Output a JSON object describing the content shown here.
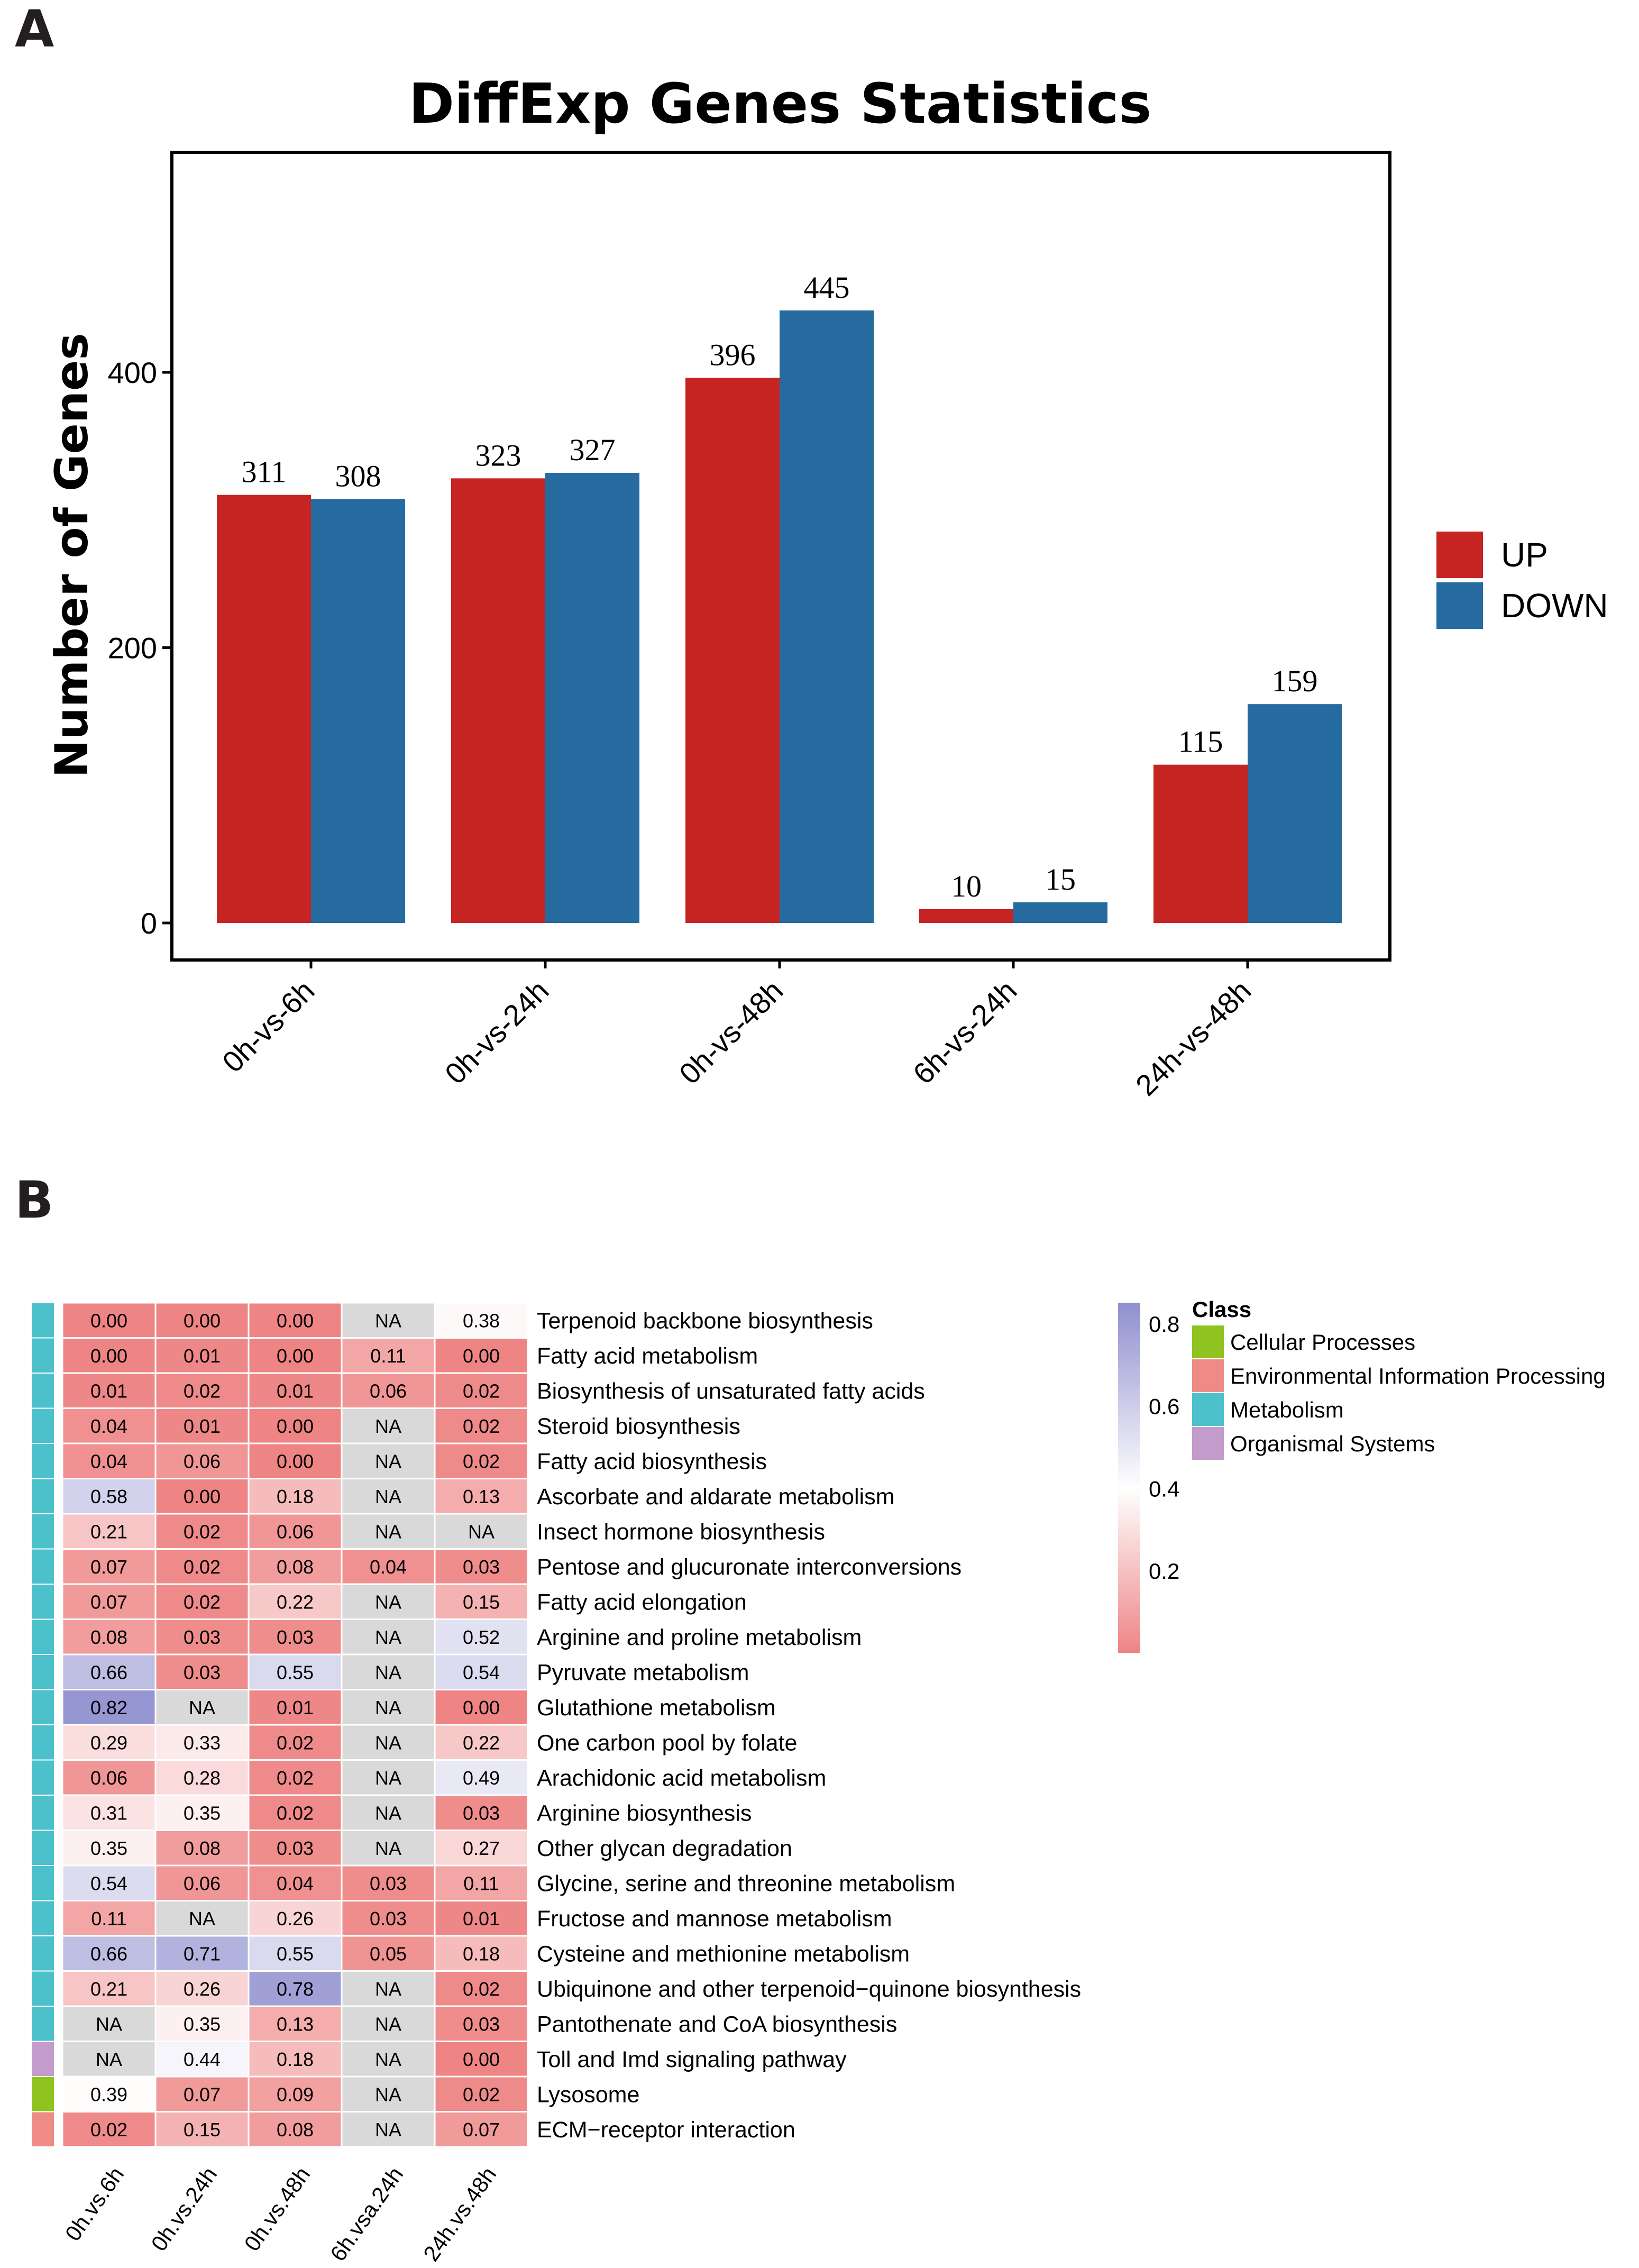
{
  "panels": {
    "a_letter": "A",
    "b_letter": "B"
  },
  "chart_data": [
    {
      "type": "bar",
      "title": "DiffExp Genes Statistics",
      "xlabel": "",
      "ylabel": "Number of Genes",
      "categories": [
        "0h-vs-6h",
        "0h-vs-24h",
        "0h-vs-48h",
        "6h-vs-24h",
        "24h-vs-48h"
      ],
      "series": [
        {
          "name": "UP",
          "color": "#c52423",
          "values": [
            311,
            323,
            396,
            10,
            115
          ]
        },
        {
          "name": "DOWN",
          "color": "#256b9f",
          "values": [
            308,
            327,
            445,
            15,
            159
          ]
        }
      ],
      "yticks": [
        0,
        200,
        400
      ],
      "ylim": [
        0,
        550
      ],
      "grid": false,
      "legend": "right"
    },
    {
      "type": "heatmap",
      "columns": [
        "0h.vs.6h",
        "0h.vs.24h",
        "0h.vs.48h",
        "6h.vsa.24h",
        "24h.vs.48h"
      ],
      "rows": [
        {
          "name": "Terpenoid backbone biosynthesis",
          "class": "Metabolism",
          "values": [
            "0.00",
            "0.00",
            "0.00",
            "NA",
            "0.38"
          ]
        },
        {
          "name": "Fatty acid metabolism",
          "class": "Metabolism",
          "values": [
            "0.00",
            "0.01",
            "0.00",
            "0.11",
            "0.00"
          ]
        },
        {
          "name": "Biosynthesis of unsaturated fatty acids",
          "class": "Metabolism",
          "values": [
            "0.01",
            "0.02",
            "0.01",
            "0.06",
            "0.02"
          ]
        },
        {
          "name": "Steroid biosynthesis",
          "class": "Metabolism",
          "values": [
            "0.04",
            "0.01",
            "0.00",
            "NA",
            "0.02"
          ]
        },
        {
          "name": "Fatty acid biosynthesis",
          "class": "Metabolism",
          "values": [
            "0.04",
            "0.06",
            "0.00",
            "NA",
            "0.02"
          ]
        },
        {
          "name": "Ascorbate and aldarate metabolism",
          "class": "Metabolism",
          "values": [
            "0.58",
            "0.00",
            "0.18",
            "NA",
            "0.13"
          ]
        },
        {
          "name": "Insect hormone biosynthesis",
          "class": "Metabolism",
          "values": [
            "0.21",
            "0.02",
            "0.06",
            "NA",
            "NA"
          ]
        },
        {
          "name": "Pentose and glucuronate interconversions",
          "class": "Metabolism",
          "values": [
            "0.07",
            "0.02",
            "0.08",
            "0.04",
            "0.03"
          ]
        },
        {
          "name": "Fatty acid elongation",
          "class": "Metabolism",
          "values": [
            "0.07",
            "0.02",
            "0.22",
            "NA",
            "0.15"
          ]
        },
        {
          "name": "Arginine and proline metabolism",
          "class": "Metabolism",
          "values": [
            "0.08",
            "0.03",
            "0.03",
            "NA",
            "0.52"
          ]
        },
        {
          "name": "Pyruvate metabolism",
          "class": "Metabolism",
          "values": [
            "0.66",
            "0.03",
            "0.55",
            "NA",
            "0.54"
          ]
        },
        {
          "name": "Glutathione metabolism",
          "class": "Metabolism",
          "values": [
            "0.82",
            "NA",
            "0.01",
            "NA",
            "0.00"
          ]
        },
        {
          "name": "One carbon pool by folate",
          "class": "Metabolism",
          "values": [
            "0.29",
            "0.33",
            "0.02",
            "NA",
            "0.22"
          ]
        },
        {
          "name": "Arachidonic acid metabolism",
          "class": "Metabolism",
          "values": [
            "0.06",
            "0.28",
            "0.02",
            "NA",
            "0.49"
          ]
        },
        {
          "name": "Arginine biosynthesis",
          "class": "Metabolism",
          "values": [
            "0.31",
            "0.35",
            "0.02",
            "NA",
            "0.03"
          ]
        },
        {
          "name": "Other glycan degradation",
          "class": "Metabolism",
          "values": [
            "0.35",
            "0.08",
            "0.03",
            "NA",
            "0.27"
          ]
        },
        {
          "name": "Glycine, serine and threonine metabolism",
          "class": "Metabolism",
          "values": [
            "0.54",
            "0.06",
            "0.04",
            "0.03",
            "0.11"
          ]
        },
        {
          "name": "Fructose and mannose metabolism",
          "class": "Metabolism",
          "values": [
            "0.11",
            "NA",
            "0.26",
            "0.03",
            "0.01"
          ]
        },
        {
          "name": "Cysteine and methionine metabolism",
          "class": "Metabolism",
          "values": [
            "0.66",
            "0.71",
            "0.55",
            "0.05",
            "0.18"
          ]
        },
        {
          "name": "Ubiquinone and other terpenoid−quinone biosynthesis",
          "class": "Metabolism",
          "values": [
            "0.21",
            "0.26",
            "0.78",
            "NA",
            "0.02"
          ]
        },
        {
          "name": "Pantothenate and CoA biosynthesis",
          "class": "Metabolism",
          "values": [
            "NA",
            "0.35",
            "0.13",
            "NA",
            "0.03"
          ]
        },
        {
          "name": "Toll and Imd signaling pathway",
          "class": "Organismal Systems",
          "values": [
            "NA",
            "0.44",
            "0.18",
            "NA",
            "0.00"
          ]
        },
        {
          "name": "Lysosome",
          "class": "Cellular Processes",
          "values": [
            "0.39",
            "0.07",
            "0.09",
            "NA",
            "0.02"
          ]
        },
        {
          "name": "ECM−receptor interaction",
          "class": "Environmental Information Processing",
          "values": [
            "0.02",
            "0.15",
            "0.08",
            "NA",
            "0.07"
          ]
        }
      ],
      "colorbar": {
        "ticks": [
          "0.8",
          "0.6",
          "0.4",
          "0.2"
        ],
        "range": [
          0.0,
          0.85
        ],
        "low_color": "#ee8484",
        "mid_color": "#ffffff",
        "high_color": "#8f8fcf",
        "na_color": "#d9d9d9"
      },
      "class_legend": {
        "title": "Class",
        "items": [
          {
            "name": "Cellular Processes",
            "color": "#8fc31f"
          },
          {
            "name": "Environmental Information Processing",
            "color": "#ef8b87"
          },
          {
            "name": "Metabolism",
            "color": "#4cc1cc"
          },
          {
            "name": "Organismal Systems",
            "color": "#c39ccb"
          }
        ]
      }
    }
  ]
}
